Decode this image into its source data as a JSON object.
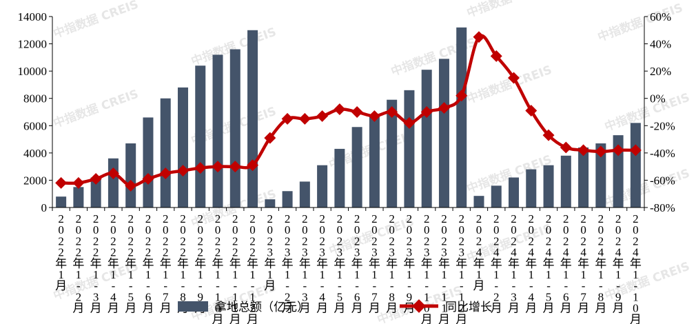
{
  "chart_data": {
    "type": "bar+line",
    "title": "",
    "categories": [
      "2022年1月",
      "2022年1-2月",
      "2022年1-3月",
      "2022年1-4月",
      "2022年1-5月",
      "2022年1-6月",
      "2022年1-7月",
      "2022年1-8月",
      "2022年1-9月",
      "2022年1-10月",
      "2022年1-11月",
      "2022年1-12月",
      "2023年1月",
      "2023年1-2月",
      "2023年1-3月",
      "2023年1-4月",
      "2023年1-5月",
      "2023年1-6月",
      "2023年1-7月",
      "2023年1-8月",
      "2023年1-9月",
      "2023年1-10月",
      "2023年1-11月",
      "2023年1-12月",
      "2024年1月",
      "2024年1-2月",
      "2024年1-3月",
      "2024年1-4月",
      "2024年1-5月",
      "2024年1-6月",
      "2024年1-7月",
      "2024年1-8月",
      "2024年1-9月",
      "2024年1-10月"
    ],
    "series": [
      {
        "name": "拿地总额（亿元）",
        "type": "bar",
        "axis": "left",
        "color": "#44546a",
        "values": [
          800,
          1500,
          2200,
          3600,
          4700,
          6600,
          8000,
          8800,
          10400,
          11200,
          11600,
          13000,
          600,
          1200,
          1900,
          3100,
          4300,
          5900,
          6800,
          7900,
          8600,
          10100,
          10900,
          13200,
          850,
          1600,
          2200,
          2800,
          3100,
          3800,
          4400,
          4700,
          5300,
          6200
        ]
      },
      {
        "name": "同比增长",
        "type": "line",
        "axis": "right",
        "color": "#c00000",
        "values": [
          -62,
          -62,
          -59,
          -55,
          -64,
          -59,
          -55,
          -53,
          -51,
          -50,
          -50,
          -49,
          -29,
          -15,
          -15,
          -13,
          -8,
          -10,
          -13,
          -10,
          -18,
          -10,
          -7,
          2,
          45,
          31,
          15,
          -9,
          -27,
          -36,
          -38,
          -39,
          -38,
          -38
        ]
      }
    ],
    "y_left": {
      "min": 0,
      "max": 14000,
      "step": 2000,
      "ticks": [
        "0",
        "2000",
        "4000",
        "6000",
        "8000",
        "10000",
        "12000",
        "14000"
      ]
    },
    "y_right": {
      "min": -80,
      "max": 60,
      "step": 20,
      "ticks": [
        "-80%",
        "-60%",
        "-40%",
        "-20%",
        "0%",
        "20%",
        "40%",
        "60%"
      ]
    },
    "grid": false,
    "legend_position": "bottom-center",
    "watermark": "中指数据 CREIS"
  }
}
